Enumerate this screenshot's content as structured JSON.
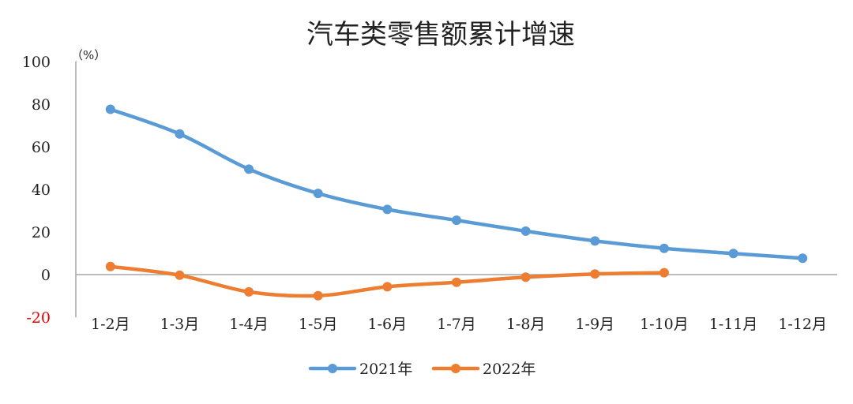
{
  "chart_data": {
    "type": "line",
    "title": "汽车类零售额累计增速",
    "y_unit": "（%）",
    "categories": [
      "1-2月",
      "1-3月",
      "1-4月",
      "1-5月",
      "1-6月",
      "1-7月",
      "1-8月",
      "1-9月",
      "1-10月",
      "1-11月",
      "1-12月"
    ],
    "ylim": [
      -20,
      100
    ],
    "yticks": [
      {
        "value": 100,
        "label": "100"
      },
      {
        "value": 80,
        "label": "80"
      },
      {
        "value": 60,
        "label": "60"
      },
      {
        "value": 40,
        "label": "40"
      },
      {
        "value": 20,
        "label": "20"
      },
      {
        "value": 0,
        "label": "0"
      },
      {
        "value": -20,
        "label": "-20"
      }
    ],
    "grid": false,
    "legend_position": "bottom",
    "series": [
      {
        "name": "2021年",
        "color": "#5b9bd5",
        "values": [
          77.6,
          66.0,
          49.5,
          38.1,
          30.6,
          25.5,
          20.4,
          15.8,
          12.3,
          9.9,
          7.7
        ]
      },
      {
        "name": "2022年",
        "color": "#ed7d31",
        "values": [
          3.8,
          -0.3,
          -8.1,
          -9.9,
          -5.7,
          -3.6,
          -1.2,
          0.3,
          0.9,
          null,
          null
        ]
      }
    ]
  }
}
